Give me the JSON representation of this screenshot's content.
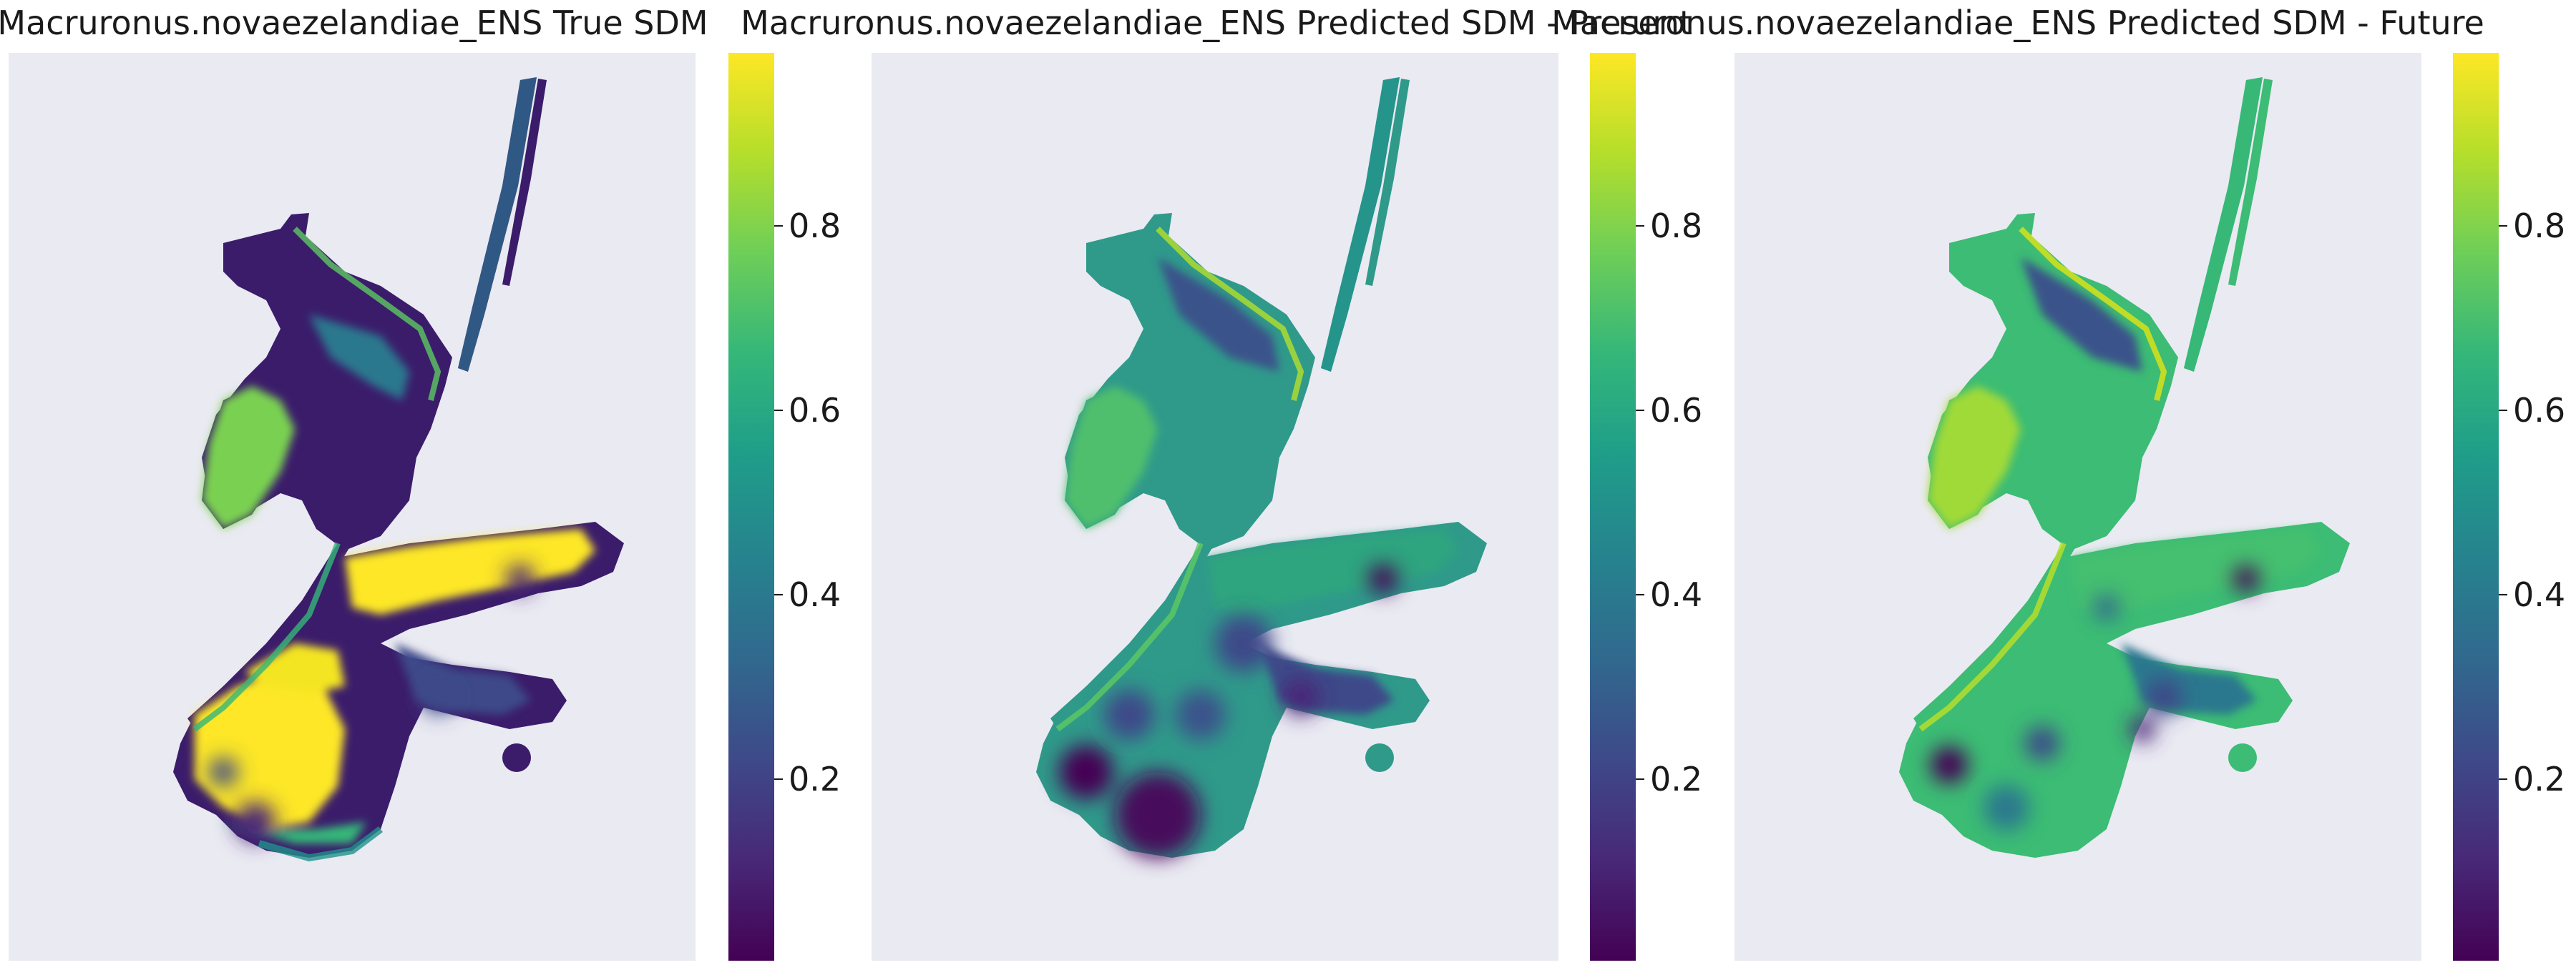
{
  "chart_data": [
    {
      "type": "heatmap",
      "title": "Macruronus.novaezelandiae_ENS True SDM",
      "grid": false,
      "colormap": "viridis",
      "clim": [
        0,
        1
      ],
      "colorbar_ticks": [
        "0.2",
        "0.4",
        "0.6",
        "0.8"
      ],
      "colorbar_tick_values": [
        0.2,
        0.4,
        0.6,
        0.8
      ],
      "background": "#eaeaf2"
    },
    {
      "type": "heatmap",
      "title": "Macruronus.novaezelandiae_ENS Predicted SDM - Present",
      "grid": false,
      "colormap": "viridis",
      "clim": [
        0,
        1
      ],
      "colorbar_ticks": [
        "0.2",
        "0.4",
        "0.6",
        "0.8"
      ],
      "colorbar_tick_values": [
        0.2,
        0.4,
        0.6,
        0.8
      ],
      "background": "#eaeaf2"
    },
    {
      "type": "heatmap",
      "title": "Macruronus.novaezelandiae_ENS Predicted SDM - Future",
      "grid": false,
      "colormap": "viridis",
      "clim": [
        0,
        1
      ],
      "colorbar_ticks": [
        "0.2",
        "0.4",
        "0.6",
        "0.8"
      ],
      "colorbar_tick_values": [
        0.2,
        0.4,
        0.6,
        0.8
      ],
      "background": "#eaeaf2"
    }
  ],
  "colors": {
    "plot_background": "#eaeaf2",
    "viridis": [
      "#440154",
      "#482878",
      "#3e4989",
      "#31688e",
      "#26828e",
      "#1f9e89",
      "#35b779",
      "#6ece58",
      "#b5de2b",
      "#fde725"
    ]
  }
}
